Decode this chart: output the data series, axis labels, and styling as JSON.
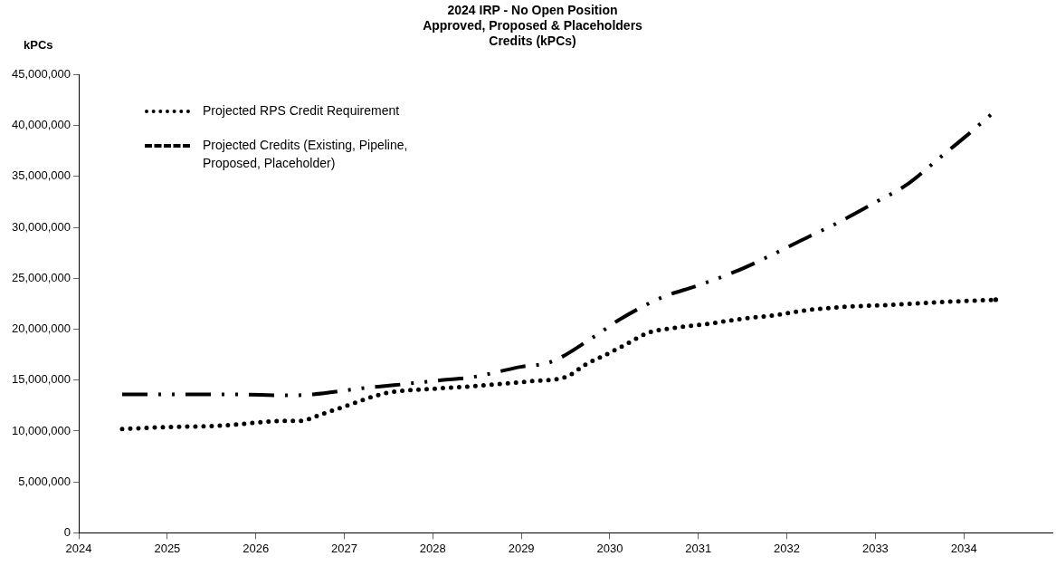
{
  "chart_data": {
    "type": "line",
    "title": "2024 IRP - No Open Position\nApproved, Proposed & Placeholders\nCredits (kPCs)",
    "ylabel": "kPCs",
    "xlim": [
      2024,
      2035
    ],
    "xticks": [
      2024,
      2025,
      2026,
      2027,
      2028,
      2029,
      2030,
      2031,
      2032,
      2033,
      2034
    ],
    "ylim": [
      0,
      45000000
    ],
    "yticks": [
      {
        "value": 0,
        "label": "0"
      },
      {
        "value": 5000000,
        "label": "5,000,000"
      },
      {
        "value": 10000000,
        "label": "10,000,000"
      },
      {
        "value": 15000000,
        "label": "15,000,000"
      },
      {
        "value": 20000000,
        "label": "20,000,000"
      },
      {
        "value": 25000000,
        "label": "25,000,000"
      },
      {
        "value": 30000000,
        "label": "30,000,000"
      },
      {
        "value": 35000000,
        "label": "35,000,000"
      },
      {
        "value": 40000000,
        "label": "40,000,000"
      },
      {
        "value": 45000000,
        "label": "45,000,000"
      }
    ],
    "grid": false,
    "legend": "top left",
    "marker": "none",
    "series": [
      {
        "name": "Projected RPS Credit Requirement",
        "color": "#000000",
        "line_style": "dotted",
        "x": [
          2024.49,
          2025.03,
          2025.55,
          2026.36,
          2026.5,
          2026.76,
          2027.0,
          2027.26,
          2027.51,
          2027.92,
          2028.45,
          2029.12,
          2029.5,
          2029.74,
          2029.98,
          2030.2,
          2030.45,
          2030.7,
          2031.09,
          2031.48,
          2031.88,
          2032.26,
          2032.66,
          2033.2,
          2033.84,
          2034.36
        ],
        "values": [
          10200000,
          10400000,
          10500000,
          11000000,
          11000000,
          11700000,
          12400000,
          13200000,
          13800000,
          14100000,
          14400000,
          14900000,
          15300000,
          16600000,
          17600000,
          18600000,
          19700000,
          20100000,
          20500000,
          21000000,
          21400000,
          21900000,
          22200000,
          22400000,
          22700000,
          22900000
        ]
      },
      {
        "name": "Projected Credits (Existing, Pipeline, Proposed, Placeholder)",
        "color": "#000000",
        "line_style": "dashed",
        "x": [
          2024.49,
          2025.74,
          2026.36,
          2026.65,
          2027.2,
          2027.56,
          2028.1,
          2028.45,
          2028.99,
          2029.34,
          2029.81,
          2030.12,
          2030.61,
          2030.93,
          2031.43,
          2031.76,
          2032.25,
          2032.54,
          2033.03,
          2033.34,
          2033.75,
          2034.03,
          2034.31
        ],
        "values": [
          13600000,
          13600000,
          13500000,
          13600000,
          14200000,
          14500000,
          15000000,
          15300000,
          16300000,
          16800000,
          19200000,
          21000000,
          23200000,
          24100000,
          25700000,
          27000000,
          29100000,
          30300000,
          32600000,
          34100000,
          37000000,
          39000000,
          41100000
        ]
      }
    ]
  }
}
